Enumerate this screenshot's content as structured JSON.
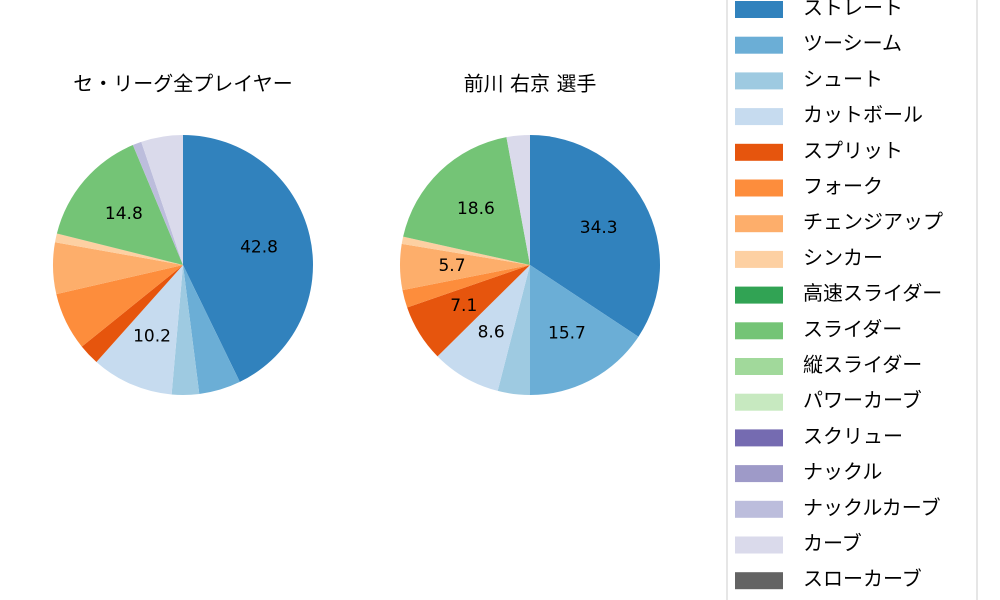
{
  "chart_data": [
    {
      "type": "pie",
      "title": "セ・リーグ全プレイヤー",
      "categories": [
        "ストレート",
        "ツーシーム",
        "シュート",
        "カットボール",
        "スプリット",
        "フォーク",
        "チェンジアップ",
        "シンカー",
        "スライダー",
        "ナックルカーブ",
        "カーブ"
      ],
      "values": [
        42.8,
        5.2,
        3.4,
        10.2,
        2.6,
        7.2,
        6.4,
        1.1,
        14.8,
        1.1,
        5.2
      ],
      "value_labels": [
        "42.8",
        null,
        null,
        "10.2",
        null,
        null,
        null,
        null,
        "14.8",
        null,
        null
      ]
    },
    {
      "type": "pie",
      "title": "前川 右京  選手",
      "categories": [
        "ストレート",
        "ツーシーム",
        "シュート",
        "カットボール",
        "スプリット",
        "フォーク",
        "チェンジアップ",
        "シンカー",
        "スライダー",
        "カーブ"
      ],
      "values": [
        34.3,
        15.7,
        4.0,
        8.6,
        7.1,
        2.2,
        5.7,
        0.9,
        18.6,
        2.9
      ],
      "value_labels": [
        "34.3",
        "15.7",
        null,
        "8.6",
        "7.1",
        null,
        "5.7",
        null,
        "18.6",
        null
      ]
    }
  ],
  "legend": [
    {
      "name": "ストレート",
      "color": "#3182bd"
    },
    {
      "name": "ツーシーム",
      "color": "#6baed6"
    },
    {
      "name": "シュート",
      "color": "#9ecae1"
    },
    {
      "name": "カットボール",
      "color": "#c6dbef"
    },
    {
      "name": "スプリット",
      "color": "#e6550d"
    },
    {
      "name": "フォーク",
      "color": "#fd8d3c"
    },
    {
      "name": "チェンジアップ",
      "color": "#fdae6b"
    },
    {
      "name": "シンカー",
      "color": "#fdd0a2"
    },
    {
      "name": "高速スライダー",
      "color": "#31a354"
    },
    {
      "name": "スライダー",
      "color": "#74c476"
    },
    {
      "name": "縦スライダー",
      "color": "#a1d99b"
    },
    {
      "name": "パワーカーブ",
      "color": "#c7e9c0"
    },
    {
      "name": "スクリュー",
      "color": "#756bb1"
    },
    {
      "name": "ナックル",
      "color": "#9e9ac8"
    },
    {
      "name": "ナックルカーブ",
      "color": "#bcbddc"
    },
    {
      "name": "カーブ",
      "color": "#dadaeb"
    },
    {
      "name": "スローカーブ",
      "color": "#636363"
    }
  ]
}
